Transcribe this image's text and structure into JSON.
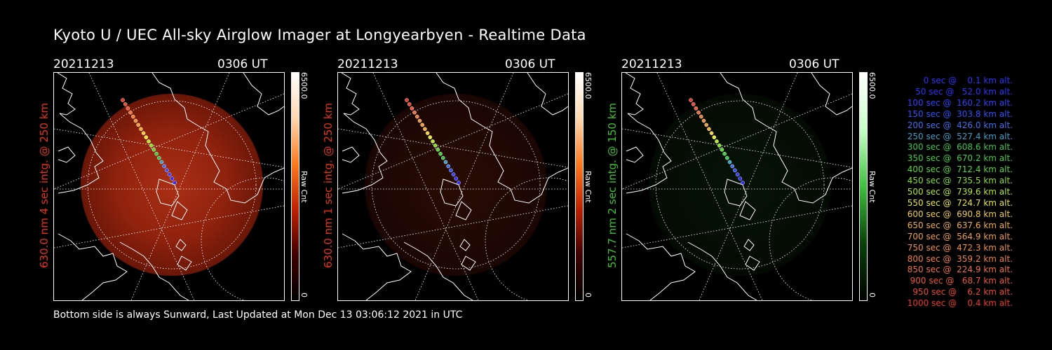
{
  "title": "Kyoto U / UEC All-sky Airglow Imager at Longyearbyen - Realtime Data",
  "panels": [
    {
      "date": "20211213",
      "time": "0306 UT",
      "vlabel": "630.0 nm 4 sec intg. @ 250 km",
      "vlabel_color": "#e8331c",
      "cbar_max": "6500.0",
      "cbar_min": "0",
      "cbar_label": "Raw Cnt",
      "glow": "red",
      "glow_level": 0.85
    },
    {
      "date": "20211213",
      "time": "0306 UT",
      "vlabel": "630.0 nm 1 sec intg. @ 250 km",
      "vlabel_color": "#e8331c",
      "cbar_max": "6500.0",
      "cbar_min": "0",
      "cbar_label": "Raw Cnt",
      "glow": "red",
      "glow_level": 0.2
    },
    {
      "date": "20211213",
      "time": "0306 UT",
      "vlabel": "557.7 nm 2 sec intg. @ 150 km",
      "vlabel_color": "#3ec42c",
      "cbar_max": "6500.0",
      "cbar_min": "0",
      "cbar_label": "Raw Cnt",
      "glow": "green",
      "glow_level": 0.25
    }
  ],
  "footer": "Bottom side is always Sunward, Last Updated at Mon Dec 13 03:06:12 2021 in UTC",
  "legend": [
    {
      "text": "   0 sec @    0.1 km alt.",
      "color": "#3030ff"
    },
    {
      "text": "  50 sec @   52.0 km alt.",
      "color": "#3030ff"
    },
    {
      "text": " 100 sec @  160.2 km alt.",
      "color": "#3040ff"
    },
    {
      "text": " 150 sec @  303.8 km alt.",
      "color": "#3050ff"
    },
    {
      "text": " 200 sec @  426.0 km alt.",
      "color": "#4070f0"
    },
    {
      "text": " 250 sec @  527.4 km alt.",
      "color": "#3aa0c8"
    },
    {
      "text": " 300 sec @  608.6 km alt.",
      "color": "#38c850"
    },
    {
      "text": " 350 sec @  670.2 km alt.",
      "color": "#40d040"
    },
    {
      "text": " 400 sec @  712.4 km alt.",
      "color": "#58d838"
    },
    {
      "text": " 450 sec @  735.5 km alt.",
      "color": "#88e030"
    },
    {
      "text": " 500 sec @  739.6 km alt.",
      "color": "#b8e830"
    },
    {
      "text": " 550 sec @  724.7 km alt.",
      "color": "#e8e838"
    },
    {
      "text": " 600 sec @  690.8 km alt.",
      "color": "#f0d040"
    },
    {
      "text": " 650 sec @  637.6 km alt.",
      "color": "#f0b040"
    },
    {
      "text": " 700 sec @  564.9 km alt.",
      "color": "#f0a040"
    },
    {
      "text": " 750 sec @  472.3 km alt.",
      "color": "#f09040"
    },
    {
      "text": " 800 sec @  359.2 km alt.",
      "color": "#f08040"
    },
    {
      "text": " 850 sec @  224.9 km alt.",
      "color": "#f07040"
    },
    {
      "text": " 900 sec @   68.7 km alt.",
      "color": "#f05838"
    },
    {
      "text": " 950 sec @    6.2 km alt.",
      "color": "#f04830"
    },
    {
      "text": "1000 sec @    0.4 km alt.",
      "color": "#f03828"
    }
  ]
}
